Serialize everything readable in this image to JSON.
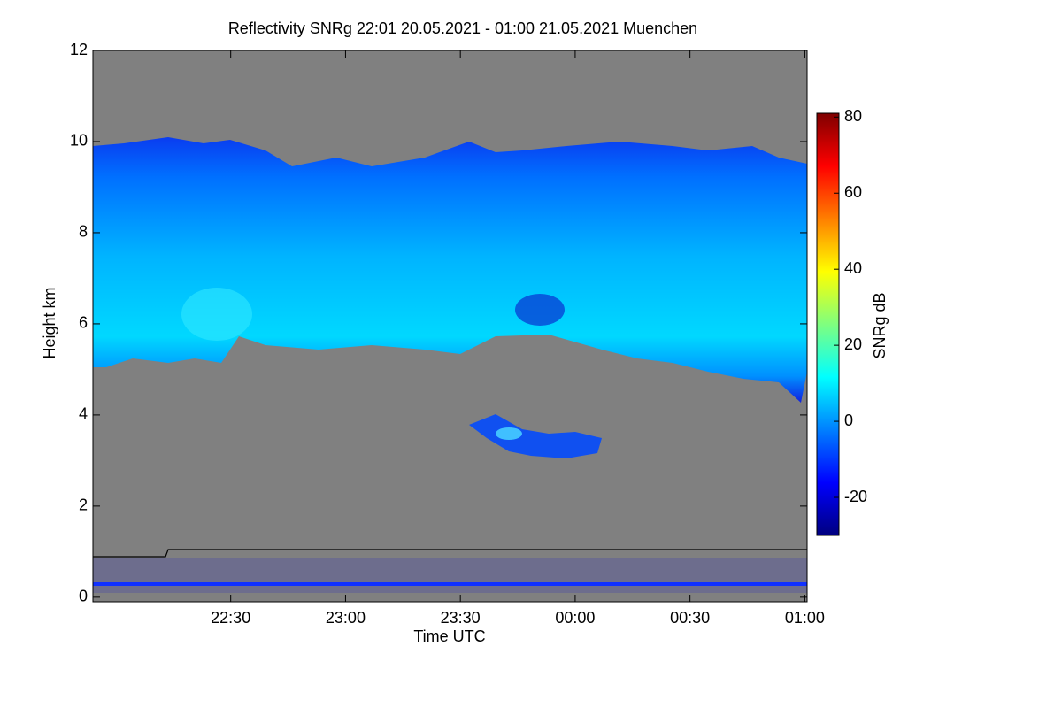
{
  "chart_data": {
    "type": "heatmap",
    "title": "Reflectivity SNRg   22:01 20.05.2021 - 01:00 21.05.2021 Muenchen",
    "xlabel": "Time UTC",
    "ylabel": "Height km",
    "colorbar_label": "SNRg dB",
    "xlim": [
      21.9,
      25.01
    ],
    "xticks": [
      {
        "value": 22.5,
        "label": "22:30"
      },
      {
        "value": 23,
        "label": "23:00"
      },
      {
        "value": 23.5,
        "label": "23:30"
      },
      {
        "value": 24,
        "label": "00:00"
      },
      {
        "value": 24.5,
        "label": "00:30"
      },
      {
        "value": 25,
        "label": "01:00"
      }
    ],
    "ylim": [
      -0.1,
      12
    ],
    "yticks": [
      0,
      2,
      4,
      6,
      8,
      10,
      12
    ],
    "clim": [
      -30,
      81
    ],
    "cticks": [
      -20,
      0,
      20,
      40,
      60,
      80
    ],
    "colormap": [
      "#00007f",
      "#0000ff",
      "#007fff",
      "#00ffff",
      "#7fff7f",
      "#ffff00",
      "#ff7f00",
      "#ff0000",
      "#7f0000"
    ],
    "background": "#808080"
  }
}
